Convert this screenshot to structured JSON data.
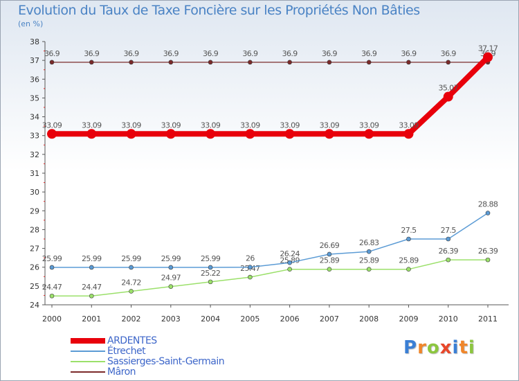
{
  "chart_data": {
    "type": "line",
    "title": "Evolution du Taux de Taxe Foncière sur les Propriétés Non Bâties",
    "ylabel": "(en %)",
    "x": [
      "2000",
      "2001",
      "2002",
      "2003",
      "2004",
      "2005",
      "2006",
      "2007",
      "2008",
      "2009",
      "2010",
      "2011"
    ],
    "ylim": [
      24,
      38
    ],
    "yticks": [
      24,
      25,
      26,
      27,
      28,
      29,
      30,
      31,
      32,
      33,
      34,
      35,
      36,
      37,
      38
    ],
    "grid": false,
    "legend_position": "bottom-left",
    "series": [
      {
        "name": "ARDENTES",
        "color": "#e8000b",
        "values": [
          33.09,
          33.09,
          33.09,
          33.09,
          33.09,
          33.09,
          33.09,
          33.09,
          33.09,
          33.09,
          35.07,
          37.17
        ],
        "labels": [
          "33.09",
          "33.09",
          "33.09",
          "33.09",
          "33.09",
          "33.09",
          "33.09",
          "33.09",
          "33.09",
          "33.09",
          "35.07",
          "37.17"
        ]
      },
      {
        "name": "Étrechet",
        "color": "#5b9bd5",
        "values": [
          25.99,
          25.99,
          25.99,
          25.99,
          25.99,
          26,
          26.24,
          26.69,
          26.83,
          27.5,
          27.5,
          28.88
        ],
        "labels": [
          "25.99",
          "25.99",
          "25.99",
          "25.99",
          "25.99",
          "26",
          "26.24",
          "26.69",
          "26.83",
          "27.5",
          "27.5",
          "28.88"
        ]
      },
      {
        "name": "Sassierges-Saint-Germain",
        "color": "#9be06a",
        "values": [
          24.47,
          24.47,
          24.72,
          24.97,
          25.22,
          25.47,
          25.89,
          25.89,
          25.89,
          25.89,
          26.39,
          26.39
        ],
        "labels": [
          "24.47",
          "24.47",
          "24.72",
          "24.97",
          "25.22",
          "25.47",
          "25.89",
          "25.89",
          "25.89",
          "25.89",
          "26.39",
          "26.39"
        ]
      },
      {
        "name": "Mâron",
        "color": "#7b2a2a",
        "values": [
          36.9,
          36.9,
          36.9,
          36.9,
          36.9,
          36.9,
          36.9,
          36.9,
          36.9,
          36.9,
          36.9,
          36.9
        ],
        "labels": [
          "36.9",
          "36.9",
          "36.9",
          "36.9",
          "36.9",
          "36.9",
          "36.9",
          "36.9",
          "36.9",
          "36.9",
          "36.9",
          "36.9"
        ]
      }
    ]
  },
  "logo": {
    "letters": [
      "P",
      "r",
      "o",
      "x",
      "i",
      "t",
      "i"
    ],
    "colors": [
      "#3a7fd5",
      "#f0862a",
      "#8cc63f",
      "#e8472a",
      "#3a7fd5",
      "#f0862a",
      "#8cc63f"
    ]
  }
}
